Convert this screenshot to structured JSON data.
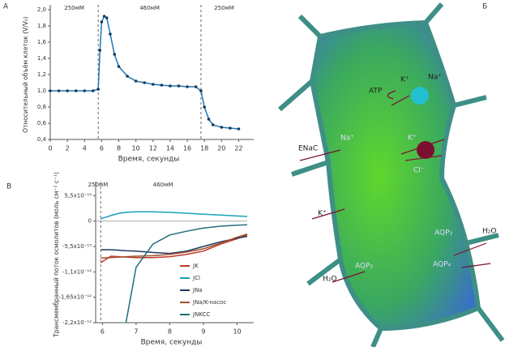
{
  "chart_data": [
    {
      "type": "line",
      "panel": "А",
      "ylabel": "Относительный объём клеток (V/V₀)",
      "xlabel": "Время, секунды",
      "x": [
        0,
        1,
        2,
        3,
        4,
        5,
        5.6,
        5.8,
        6,
        6.3,
        6.6,
        7,
        7.5,
        8,
        9,
        10,
        11,
        12,
        13,
        14,
        15,
        16,
        17,
        17.6,
        18,
        18.5,
        19,
        20,
        21,
        22
      ],
      "series": [
        {
          "name": null,
          "color": "#1f77b4",
          "values": [
            1,
            1,
            1,
            1,
            1,
            1,
            1.02,
            1.5,
            1.85,
            1.92,
            1.9,
            1.7,
            1.45,
            1.3,
            1.18,
            1.12,
            1.1,
            1.08,
            1.07,
            1.06,
            1.06,
            1.05,
            1.05,
            1.0,
            0.8,
            0.65,
            0.58,
            0.55,
            0.54,
            0.53
          ]
        }
      ],
      "xlim": [
        0,
        23
      ],
      "xticks": [
        0,
        2,
        4,
        6,
        8,
        10,
        12,
        14,
        16,
        18,
        20,
        22
      ],
      "ylim": [
        0.4,
        2.0
      ],
      "yticks": [
        {
          "value": 0.4,
          "label": "0,4"
        },
        {
          "value": 0.6,
          "label": "0,6"
        },
        {
          "value": 0.8,
          "label": "0,8"
        },
        {
          "value": 1.0,
          "label": "1,0"
        },
        {
          "value": 1.2,
          "label": "1,2"
        },
        {
          "value": 1.4,
          "label": "1,4"
        },
        {
          "value": 1.6,
          "label": "1,6"
        },
        {
          "value": 1.8,
          "label": "1,8"
        },
        {
          "value": 2.0,
          "label": "2,0"
        }
      ],
      "vlines": [
        5.6,
        17.6
      ],
      "annotations": [
        {
          "text": "250мМ",
          "x": 2.8
        },
        {
          "text": "460мМ",
          "x": 11.6
        },
        {
          "text": "250мМ",
          "x": 20.3
        }
      ]
    },
    {
      "type": "line",
      "panel": "В",
      "ylabel": "Трансмембранный поток осмолитов (моль см⁻² с⁻¹)",
      "xlabel": "Время, секунды",
      "x": [
        5.95,
        6.25,
        6.5,
        6.7,
        7,
        7.5,
        8,
        8.5,
        9,
        9.5,
        10,
        10.3
      ],
      "series": [
        {
          "name": "JK",
          "color": "#c0392b",
          "values": [
            -9e-13,
            -7.6e-13,
            -7.7e-13,
            -7.8e-13,
            -7.9e-13,
            -7.9e-13,
            -7.7e-13,
            -7.2e-13,
            -6.5e-13,
            -5e-13,
            -3.8e-13,
            -3e-13
          ]
        },
        {
          "name": "JCl",
          "color": "#17a2b8",
          "values": [
            5e-14,
            1.2e-13,
            1.7e-13,
            1.9e-13,
            2e-13,
            2e-13,
            1.9e-13,
            1.7e-13,
            1.5e-13,
            1.3e-13,
            1.1e-13,
            1e-13
          ]
        },
        {
          "name": "JNa",
          "color": "#1c3a5e",
          "values": [
            -6.2e-13,
            -6.2e-13,
            -6.3e-13,
            -6.4e-13,
            -6.5e-13,
            -6.8e-13,
            -7e-13,
            -6.5e-13,
            -5.5e-13,
            -4.5e-13,
            -3.7e-13,
            -3.3e-13
          ]
        },
        {
          "name": "JNa/K-насос",
          "color": "#a0522d",
          "values": [
            -8e-13,
            -7.9e-13,
            -7.8e-13,
            -7.7e-13,
            -7.6e-13,
            -7.5e-13,
            -7.2e-13,
            -6.7e-13,
            -6e-13,
            -4.8e-13,
            -3.5e-13,
            -2.8e-13
          ]
        },
        {
          "name": "JNKCC",
          "color": "#1f6f78",
          "values": [
            null,
            null,
            null,
            -2.2e-12,
            -1e-12,
            -5e-13,
            -3e-13,
            -2.2e-13,
            -1.5e-13,
            -1.1e-13,
            -9e-14,
            -8e-14
          ]
        }
      ],
      "xlim": [
        5.8,
        10.3
      ],
      "xticks": [
        6,
        7,
        8,
        9,
        10
      ],
      "ylim": [
        -2.2e-12,
        7.5e-13
      ],
      "yticks": [
        {
          "value": 5.5e-13,
          "label": "5,5x10⁻¹³"
        },
        0,
        {
          "value": -5.5e-13,
          "label": "-5,5x10⁻¹³"
        },
        {
          "value": -1.1e-12,
          "label": "-1,1x10⁻¹²"
        },
        {
          "value": -1.65e-12,
          "label": "-1,65x10⁻¹²"
        },
        {
          "value": -2.2e-12,
          "label": "-2,2x10⁻¹²"
        }
      ],
      "vlines": [
        5.95
      ],
      "annotations": [
        {
          "text": "250мМ",
          "x": 5.87
        },
        {
          "text": "460мМ",
          "x": 7.8
        }
      ]
    }
  ],
  "diagram": {
    "panel": "Б",
    "labels": [
      "ATP",
      "K⁺",
      "Na⁺",
      "ENaC",
      "Na⁺",
      "K⁺",
      "Cl⁻",
      "K⁺",
      "AQP₃",
      "H₂O",
      "AQP₄",
      "AQP₂",
      "H₂O"
    ]
  }
}
